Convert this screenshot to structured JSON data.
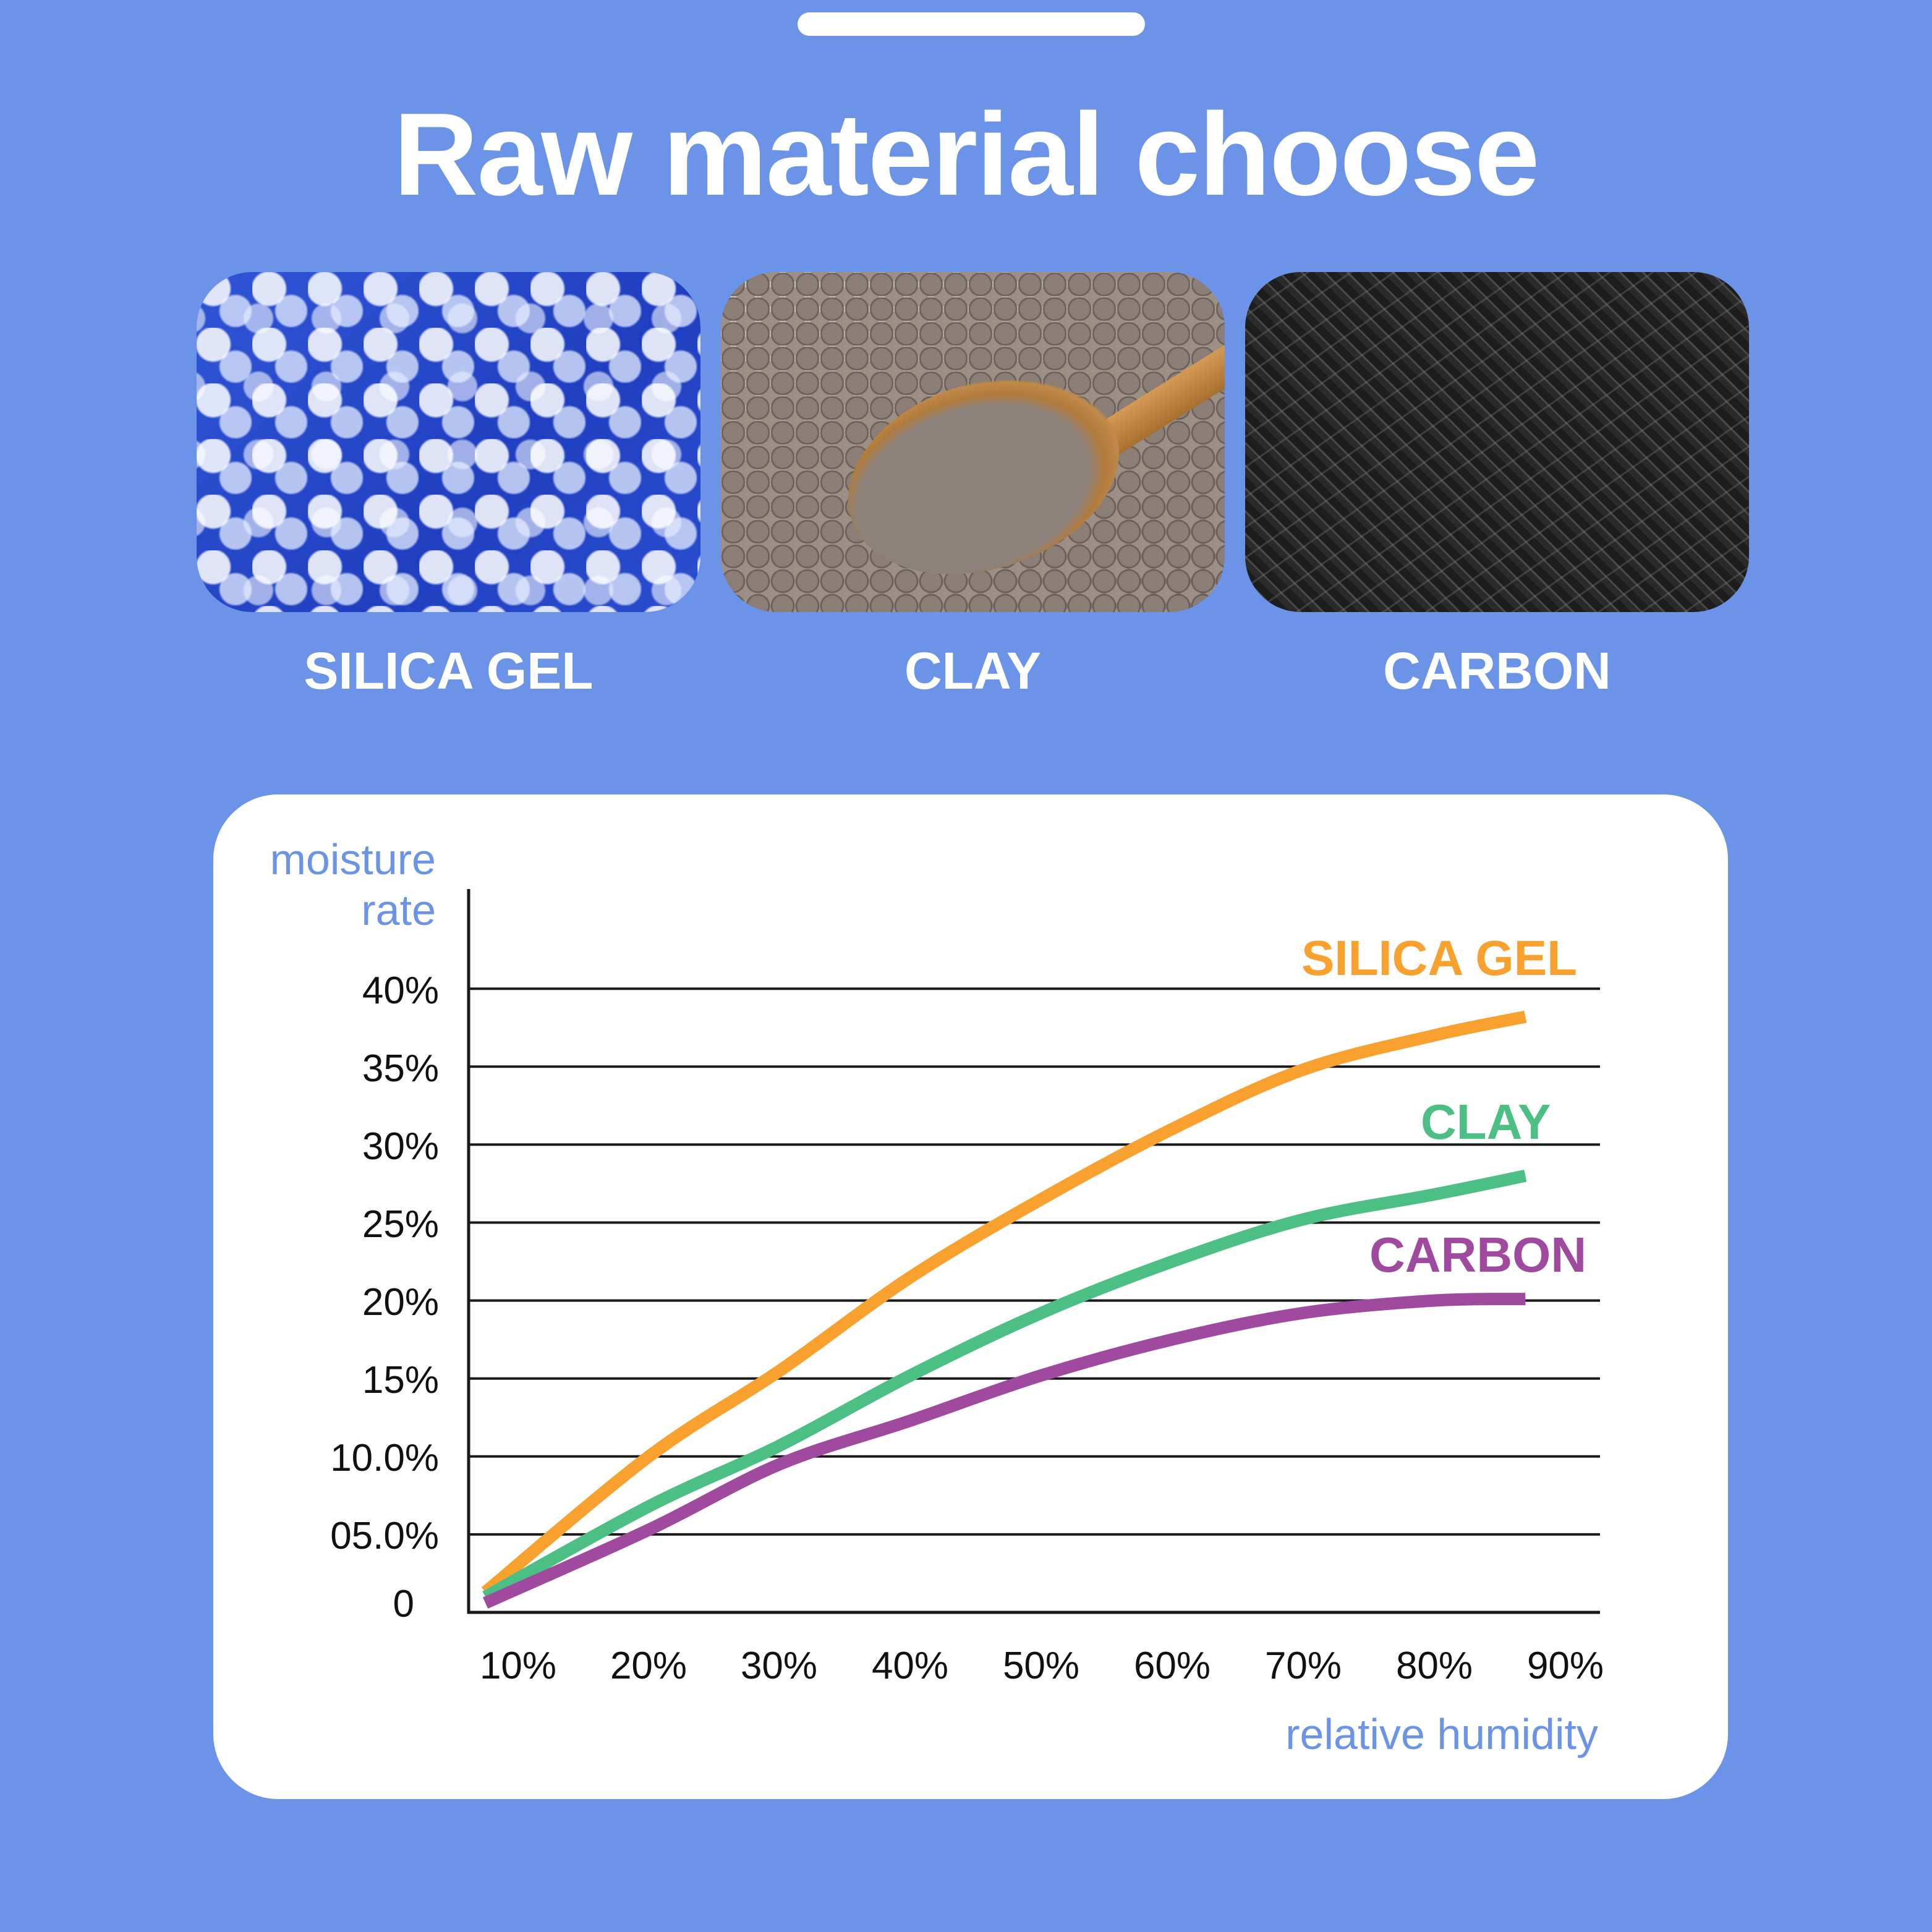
{
  "page": {
    "title": "Raw material choose"
  },
  "materials": [
    {
      "name": "SILICA GEL",
      "image": "silica-gel-beads-photo"
    },
    {
      "name": "CLAY",
      "image": "clay-pellets-with-wooden-spoon-photo"
    },
    {
      "name": "CARBON",
      "image": "activated-carbon-pellets-photo"
    }
  ],
  "colors": {
    "background": "#6b93e8",
    "panel": "#ffffff",
    "axis_title": "#6b93e8",
    "silica_gel": "#f9a12e",
    "clay": "#4cbf85",
    "carbon": "#9f4a9e",
    "gridline": "#1a1a1a"
  },
  "chart_data": {
    "type": "line",
    "title": "",
    "xlabel": "relative humidity",
    "ylabel": "moisture rate",
    "ylabel_lines": [
      "moisture",
      "rate"
    ],
    "x_tick_labels": [
      "10%",
      "20%",
      "30%",
      "40%",
      "50%",
      "60%",
      "70%",
      "80%",
      "90%"
    ],
    "y_tick_labels": [
      "40%",
      "35%",
      "30%",
      "25%",
      "20%",
      "15%",
      "10.0%",
      "05.0%",
      "0"
    ],
    "xlim": [
      6,
      92
    ],
    "ylim": [
      0,
      40
    ],
    "grid": "horizontal",
    "legend_position": "inline-right",
    "x": [
      7.5,
      20,
      30,
      40,
      50,
      60,
      70,
      80,
      87
    ],
    "series": [
      {
        "name": "SILICA GEL",
        "color": "#f9a12e",
        "values": [
          1.3,
          10.0,
          15.5,
          21.5,
          26.5,
          31.0,
          34.8,
          37.0,
          38.2
        ]
      },
      {
        "name": "CLAY",
        "color": "#4cbf85",
        "values": [
          1.0,
          6.8,
          10.7,
          15.2,
          19.2,
          22.5,
          25.2,
          26.8,
          28.0
        ]
      },
      {
        "name": "CARBON",
        "color": "#9f4a9e",
        "values": [
          0.6,
          5.3,
          9.5,
          12.3,
          15.2,
          17.5,
          19.2,
          20.0,
          20.1
        ]
      }
    ]
  }
}
